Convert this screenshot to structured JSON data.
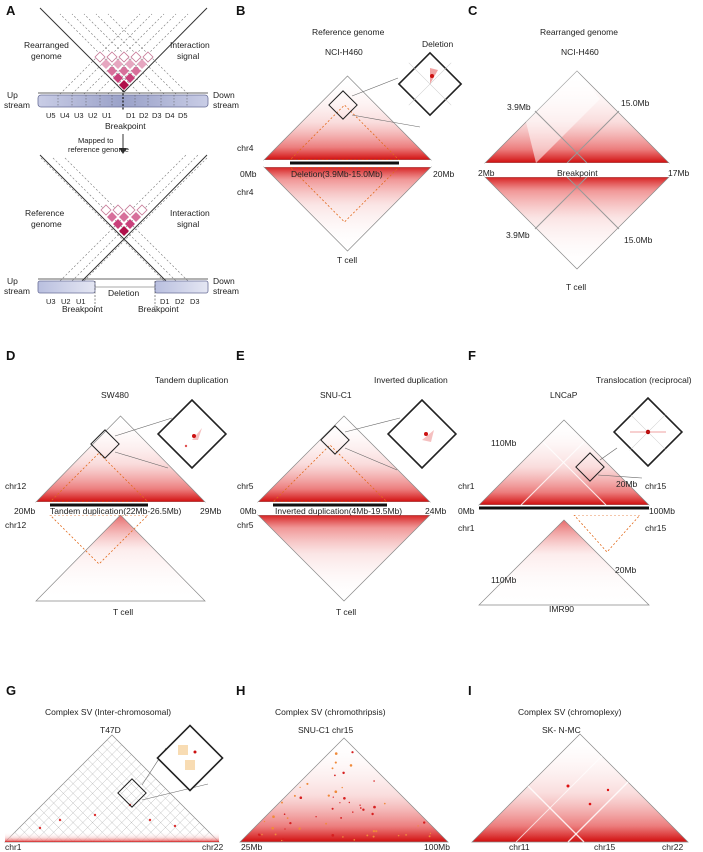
{
  "panels": [
    {
      "letter": "A",
      "top_labels": [
        "Rearranged",
        "genome",
        "Interaction",
        "signal"
      ],
      "track_top": {
        "left": [
          "Up",
          "stream"
        ],
        "right": [
          "Down",
          "stream"
        ],
        "segments": [
          "U5",
          "U4",
          "U3",
          "U2",
          "U1",
          "D1",
          "D2",
          "D3",
          "D4",
          "D5"
        ],
        "breakpoint": "Breakpoint"
      },
      "arrow_label": [
        "Mapped to",
        "reference genome"
      ],
      "bottom_labels": [
        "Reference",
        "genome",
        "Interaction",
        "signal"
      ],
      "track_bottom": {
        "left": [
          "Up",
          "stream"
        ],
        "right": [
          "Down",
          "stream"
        ],
        "segments": [
          "U3",
          "U2",
          "U1",
          "D1",
          "D2",
          "D3"
        ],
        "gap": "Deletion",
        "breakpoint": "Breakpoint"
      }
    },
    {
      "letter": "B",
      "title": "Reference genome",
      "sample_top": "NCI-H460",
      "inset": "Deletion",
      "chrom": "chr4",
      "chrom2": "chr4",
      "axis_left": "0Mb",
      "axis_right": "20Mb",
      "bar_label": "Deletion(3.9Mb-15.0Mb)",
      "sample_bottom": "T cell"
    },
    {
      "letter": "C",
      "title": "Rearranged genome",
      "sample_top": "NCI-H460",
      "left_mark": "3.9Mb",
      "right_mark": "15.0Mb",
      "axis_left": "2Mb",
      "axis_mid": "Breakpoint",
      "axis_right": "17Mb",
      "left_mark2": "3.9Mb",
      "right_mark2": "15.0Mb",
      "sample_bottom": "T cell"
    },
    {
      "letter": "D",
      "title": "Tandem duplication",
      "sample_top": "SW480",
      "chrom": "chr12",
      "chrom2": "chr12",
      "axis_left": "20Mb",
      "axis_right": "29Mb",
      "bar_label": "Tandem duplication(22Mb-26.5Mb)",
      "sample_bottom": "T cell"
    },
    {
      "letter": "E",
      "title": "Inverted duplication",
      "sample_top": "SNU-C1",
      "chrom": "chr5",
      "chrom2": "chr5",
      "axis_left": "0Mb",
      "axis_right": "24Mb",
      "bar_label": "Inverted duplication(4Mb-19.5Mb)",
      "sample_bottom": "T cell"
    },
    {
      "letter": "F",
      "title": "Translocation (reciprocal)",
      "sample_top": "LNCaP",
      "mark_a": "110Mb",
      "mark_b": "20Mb",
      "chrom_l": "chr1",
      "chrom_r": "chr15",
      "axis_left": "0Mb",
      "axis_right": "100Mb",
      "chrom_l2": "chr1",
      "chrom_r2": "chr15",
      "mark_a2": "110Mb",
      "mark_b2": "20Mb",
      "sample_bottom": "IMR90"
    },
    {
      "letter": "G",
      "title": "Complex SV (Inter-chromosomal)",
      "sample_top": "T47D",
      "axis_left": "chr1",
      "axis_right": "chr22"
    },
    {
      "letter": "H",
      "title": "Complex SV (chromothripsis)",
      "sample_top": "SNU-C1 chr15",
      "axis_left": "25Mb",
      "axis_right": "100Mb"
    },
    {
      "letter": "I",
      "title": "Complex SV (chromoplexy)",
      "sample_top": "SK- N-MC",
      "axis_left": "chr11",
      "axis_mid": "chr15",
      "axis_right": "chr22"
    }
  ]
}
